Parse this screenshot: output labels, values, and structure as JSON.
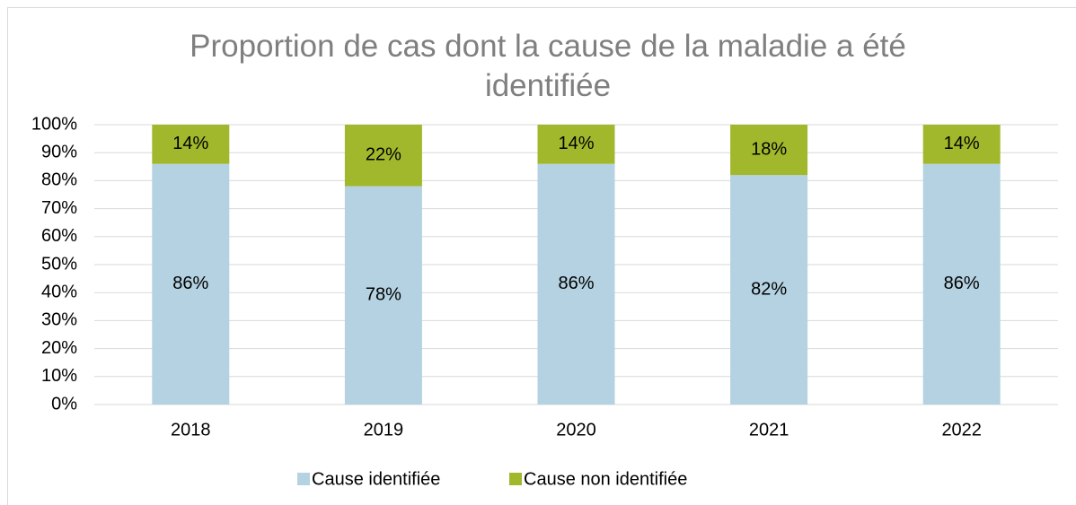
{
  "chart_data": {
    "type": "stacked_bar",
    "title": "Proportion de cas dont la cause de la maladie a été identifiée",
    "categories": [
      "2018",
      "2019",
      "2020",
      "2021",
      "2022"
    ],
    "series": [
      {
        "name": "Cause identifiée",
        "color": "#b4d2e1",
        "values": [
          86,
          78,
          86,
          82,
          86
        ],
        "value_labels": [
          "86%",
          "78%",
          "86%",
          "82%",
          "86%"
        ]
      },
      {
        "name": "Cause non identifiée",
        "color": "#a2b82c",
        "values": [
          14,
          22,
          14,
          18,
          14
        ],
        "value_labels": [
          "14%",
          "22%",
          "14%",
          "18%",
          "14%"
        ]
      }
    ],
    "ylim": [
      0,
      100
    ],
    "yticks": [
      {
        "value": 0,
        "label": "0%"
      },
      {
        "value": 10,
        "label": "10%"
      },
      {
        "value": 20,
        "label": "20%"
      },
      {
        "value": 30,
        "label": "30%"
      },
      {
        "value": 40,
        "label": "40%"
      },
      {
        "value": 50,
        "label": "50%"
      },
      {
        "value": 60,
        "label": "60%"
      },
      {
        "value": 70,
        "label": "70%"
      },
      {
        "value": 80,
        "label": "80%"
      },
      {
        "value": 90,
        "label": "90%"
      },
      {
        "value": 100,
        "label": "100%"
      }
    ],
    "grid": true,
    "legend": "bottom"
  }
}
